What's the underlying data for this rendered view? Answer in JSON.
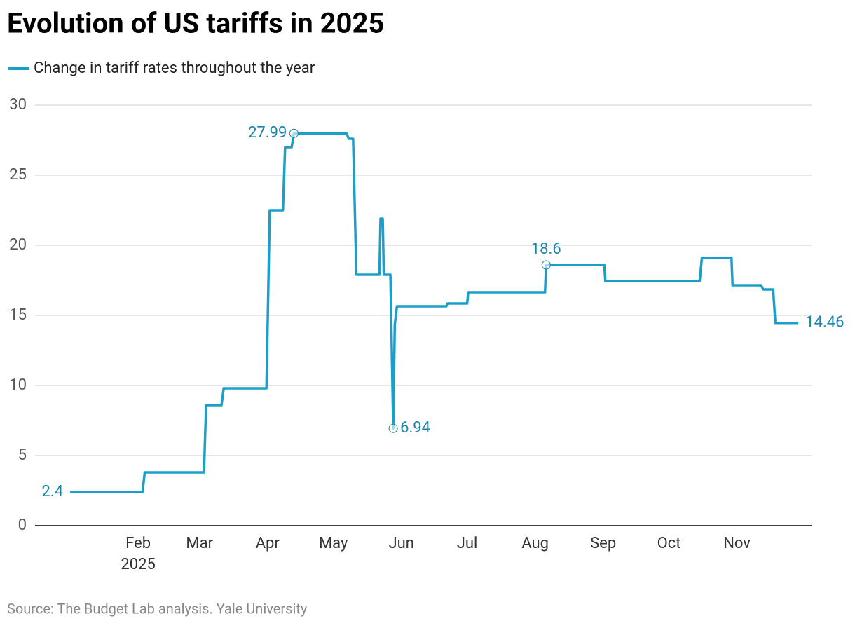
{
  "chart_data": {
    "type": "line",
    "title": "Evolution of US tariffs in 2025",
    "source": "Source: The Budget Lab analysis. Yale University",
    "x_year_label": "2025",
    "x": [
      0,
      33,
      34,
      61,
      62,
      69,
      70,
      89.5,
      91,
      97,
      98,
      101,
      102,
      126,
      127,
      129,
      130.5,
      141,
      141.5,
      142.5,
      143,
      146,
      147.3,
      148,
      149,
      171.5,
      172,
      181,
      181.5,
      216.5,
      217,
      243.5,
      244,
      287,
      288,
      301.5,
      302,
      315,
      316,
      320.5,
      321.5,
      332
    ],
    "series": [
      {
        "name": "Change in tariff rates throughout the year",
        "color": "#1a9fca",
        "values": [
          2.4,
          2.4,
          3.8,
          3.8,
          8.6,
          8.6,
          9.8,
          9.8,
          22.5,
          22.5,
          27,
          27,
          27.99,
          27.99,
          27.6,
          27.6,
          17.9,
          17.9,
          21.9,
          21.9,
          17.9,
          17.9,
          6.94,
          14.35,
          15.65,
          15.65,
          15.85,
          15.85,
          16.65,
          16.65,
          18.6,
          18.6,
          17.45,
          17.45,
          19.1,
          19.1,
          17.15,
          17.15,
          16.85,
          16.85,
          14.46,
          14.46
        ],
        "value_labels": [
          "2.4",
          null,
          null,
          null,
          null,
          null,
          null,
          null,
          null,
          null,
          null,
          null,
          "27.99",
          null,
          null,
          null,
          null,
          null,
          null,
          null,
          null,
          null,
          "6.94",
          null,
          null,
          null,
          null,
          null,
          null,
          null,
          "18.6",
          null,
          null,
          null,
          null,
          null,
          null,
          null,
          null,
          null,
          null,
          "14.46"
        ]
      }
    ],
    "xlim": [
      -16,
      338
    ],
    "xticks": [
      {
        "value": 31,
        "label": "Feb"
      },
      {
        "value": 59,
        "label": "Mar"
      },
      {
        "value": 90,
        "label": "Apr"
      },
      {
        "value": 120,
        "label": "May"
      },
      {
        "value": 151,
        "label": "Jun"
      },
      {
        "value": 181,
        "label": "Jul"
      },
      {
        "value": 212,
        "label": "Aug"
      },
      {
        "value": 243,
        "label": "Sep"
      },
      {
        "value": 273,
        "label": "Oct"
      },
      {
        "value": 304,
        "label": "Nov"
      }
    ],
    "ylim": [
      0,
      30
    ],
    "yticks": [
      0,
      5,
      10,
      15,
      20,
      25,
      30
    ],
    "grid": true
  }
}
